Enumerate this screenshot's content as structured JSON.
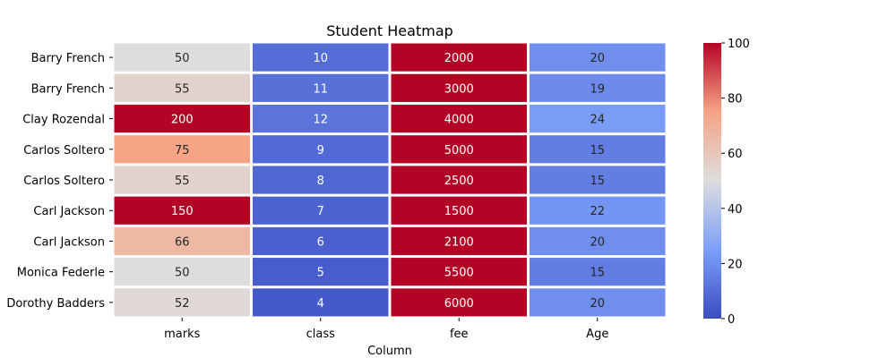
{
  "chart_data": {
    "type": "heatmap",
    "title": "Student Heatmap",
    "xlabel": "Column",
    "ylabel": "",
    "columns": [
      "marks",
      "class",
      "fee",
      "Age"
    ],
    "rows": [
      "Barry French",
      "Barry French",
      "Clay Rozendal",
      "Carlos Soltero",
      "Carlos Soltero",
      "Carl Jackson",
      "Carl Jackson",
      "Monica Federle",
      "Dorothy Badders"
    ],
    "values": [
      [
        50,
        10,
        2000,
        20
      ],
      [
        55,
        11,
        3000,
        19
      ],
      [
        200,
        12,
        4000,
        24
      ],
      [
        75,
        9,
        5000,
        15
      ],
      [
        55,
        8,
        2500,
        15
      ],
      [
        150,
        7,
        1500,
        22
      ],
      [
        66,
        6,
        2100,
        20
      ],
      [
        50,
        5,
        5500,
        15
      ],
      [
        52,
        4,
        6000,
        20
      ]
    ],
    "colormap": "coolwarm",
    "vmin": 0,
    "vmax": 100,
    "colorbar_ticks": [
      0,
      20,
      40,
      60,
      80,
      100
    ],
    "annotated": true,
    "grid": false
  }
}
